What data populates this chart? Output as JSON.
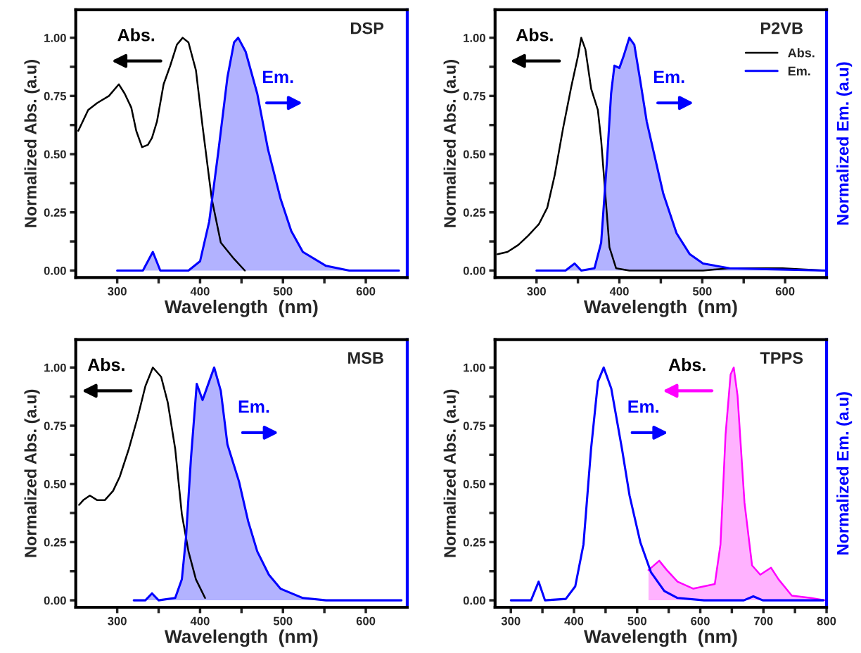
{
  "chart_data": [
    {
      "type": "line",
      "title": "DSP",
      "xlabel": "Wavelength  (nm)",
      "ylabel": "Normalized Abs. (a.u)",
      "annotations": [
        "Abs.",
        "Em."
      ],
      "xlim": [
        250,
        650
      ],
      "xticks": [
        {
          "value": 300,
          "label": "300"
        },
        {
          "value": 350,
          "label": null
        },
        {
          "value": 400,
          "label": "400"
        },
        {
          "value": 450,
          "label": null
        },
        {
          "value": 500,
          "label": "500"
        },
        {
          "value": 550,
          "label": null
        },
        {
          "value": 600,
          "label": "600"
        }
      ],
      "ylim": [
        -0.03,
        1.12
      ],
      "yticks": [
        {
          "value": 0,
          "label": "0.00"
        },
        {
          "value": 0.125,
          "label": null
        },
        {
          "value": 0.25,
          "label": "0.25"
        },
        {
          "value": 0.375,
          "label": null
        },
        {
          "value": 0.5,
          "label": "0.50"
        },
        {
          "value": 0.625,
          "label": null
        },
        {
          "value": 0.75,
          "label": "0.75"
        },
        {
          "value": 0.875,
          "label": null
        },
        {
          "value": 1,
          "label": "1.00"
        }
      ],
      "series": [
        {
          "type": "line",
          "color": "#000000",
          "x": [
            253,
            265,
            276,
            290,
            302,
            309,
            317,
            323,
            330,
            337,
            342,
            348,
            356,
            364,
            372,
            379,
            386,
            395,
            403,
            414,
            425,
            441,
            454
          ],
          "values": [
            0.6,
            0.69,
            0.72,
            0.75,
            0.8,
            0.76,
            0.7,
            0.6,
            0.53,
            0.54,
            0.57,
            0.64,
            0.8,
            0.88,
            0.97,
            1.0,
            0.98,
            0.86,
            0.62,
            0.31,
            0.12,
            0.05,
            0.0
          ]
        },
        {
          "type": "area",
          "color": "#0000ff",
          "x": [
            300,
            331,
            343,
            352,
            386,
            400,
            411,
            422,
            433,
            441,
            446,
            455,
            469,
            482,
            497,
            510,
            524,
            552,
            580,
            640
          ],
          "values": [
            0,
            0,
            0.08,
            0,
            0,
            0.04,
            0.21,
            0.51,
            0.83,
            0.98,
            1.0,
            0.94,
            0.76,
            0.52,
            0.31,
            0.17,
            0.08,
            0.02,
            0,
            0
          ]
        }
      ]
    },
    {
      "type": "line",
      "title": "P2VB",
      "xlabel": "Wavelength  (nm)",
      "ylabel": "Normalized Abs. (a.u)",
      "y2label": "Normalized Em. (a.u)",
      "annotations": [
        "Abs.",
        "Em."
      ],
      "legend": "top right",
      "xlim": [
        250,
        650
      ],
      "xticks": [
        {
          "value": 300,
          "label": "300"
        },
        {
          "value": 350,
          "label": null
        },
        {
          "value": 400,
          "label": "400"
        },
        {
          "value": 450,
          "label": null
        },
        {
          "value": 500,
          "label": "500"
        },
        {
          "value": 550,
          "label": null
        },
        {
          "value": 600,
          "label": "600"
        }
      ],
      "ylim": [
        -0.03,
        1.12
      ],
      "yticks": [
        {
          "value": 0,
          "label": "0.00"
        },
        {
          "value": 0.125,
          "label": null
        },
        {
          "value": 0.25,
          "label": "0.25"
        },
        {
          "value": 0.375,
          "label": null
        },
        {
          "value": 0.5,
          "label": "0.50"
        },
        {
          "value": 0.625,
          "label": null
        },
        {
          "value": 0.75,
          "label": "0.75"
        },
        {
          "value": 0.875,
          "label": null
        },
        {
          "value": 1,
          "label": "1.00"
        }
      ],
      "series": [
        {
          "type": "line",
          "name": "Abs.",
          "color": "#000000",
          "x": [
            253,
            265,
            278,
            290,
            303,
            313,
            322,
            332,
            342,
            350,
            354,
            359,
            366,
            374,
            378,
            383,
            388,
            396,
            412,
            501,
            533,
            597,
            648
          ],
          "values": [
            0.07,
            0.08,
            0.11,
            0.15,
            0.2,
            0.27,
            0.41,
            0.61,
            0.79,
            0.92,
            1.0,
            0.95,
            0.78,
            0.69,
            0.56,
            0.33,
            0.1,
            0.01,
            0,
            0,
            0.01,
            0.01,
            0
          ]
        },
        {
          "type": "area",
          "name": "Em.",
          "color": "#0000ff",
          "x": [
            300,
            335,
            346,
            354,
            370,
            378,
            385,
            390,
            394,
            400,
            405,
            412,
            418,
            425,
            433,
            442,
            453,
            469,
            485,
            501,
            533,
            648
          ],
          "values": [
            0,
            0,
            0.03,
            0,
            0.01,
            0.12,
            0.47,
            0.76,
            0.88,
            0.87,
            0.92,
            1.0,
            0.97,
            0.82,
            0.64,
            0.5,
            0.33,
            0.16,
            0.07,
            0.03,
            0.01,
            0
          ]
        }
      ]
    },
    {
      "type": "line",
      "title": "MSB",
      "xlabel": "Wavelength  (nm)",
      "ylabel": "Normalized Abs. (a.u)",
      "annotations": [
        "Abs.",
        "Em."
      ],
      "xlim": [
        250,
        650
      ],
      "xticks": [
        {
          "value": 300,
          "label": "300"
        },
        {
          "value": 350,
          "label": null
        },
        {
          "value": 400,
          "label": "400"
        },
        {
          "value": 450,
          "label": null
        },
        {
          "value": 500,
          "label": "500"
        },
        {
          "value": 550,
          "label": null
        },
        {
          "value": 600,
          "label": "600"
        }
      ],
      "ylim": [
        -0.03,
        1.12
      ],
      "yticks": [
        {
          "value": 0,
          "label": "0.00"
        },
        {
          "value": 0.125,
          "label": null
        },
        {
          "value": 0.25,
          "label": "0.25"
        },
        {
          "value": 0.375,
          "label": null
        },
        {
          "value": 0.5,
          "label": "0.50"
        },
        {
          "value": 0.625,
          "label": null
        },
        {
          "value": 0.75,
          "label": "0.75"
        },
        {
          "value": 0.875,
          "label": null
        },
        {
          "value": 1,
          "label": "1.00"
        }
      ],
      "series": [
        {
          "type": "line",
          "color": "#000000",
          "x": [
            254,
            259,
            267,
            276,
            285,
            295,
            303,
            314,
            325,
            334,
            343,
            353,
            361,
            370,
            378,
            386,
            395,
            406
          ],
          "values": [
            0.41,
            0.43,
            0.45,
            0.43,
            0.43,
            0.47,
            0.53,
            0.65,
            0.79,
            0.92,
            1.0,
            0.96,
            0.85,
            0.65,
            0.37,
            0.21,
            0.09,
            0.01
          ]
        },
        {
          "type": "area",
          "color": "#0000ff",
          "x": [
            320,
            334,
            342,
            350,
            370,
            378,
            383,
            389,
            396,
            403,
            411,
            417,
            425,
            433,
            447,
            458,
            469,
            483,
            497,
            524,
            552,
            643
          ],
          "values": [
            0,
            0,
            0.03,
            0,
            0.01,
            0.09,
            0.27,
            0.61,
            0.93,
            0.86,
            0.94,
            1.0,
            0.9,
            0.67,
            0.51,
            0.34,
            0.21,
            0.11,
            0.05,
            0.01,
            0,
            0
          ]
        }
      ]
    },
    {
      "type": "line",
      "title": "TPPS",
      "xlabel": "Wavelength  (nm)",
      "ylabel": "Normalized Abs. (a.u)",
      "y2label": "Normalized Em. (a.u)",
      "annotations": [
        "Abs.",
        "Em."
      ],
      "xlim": [
        275,
        800
      ],
      "xticks": [
        {
          "value": 300,
          "label": "300"
        },
        {
          "value": 350,
          "label": null
        },
        {
          "value": 400,
          "label": "400"
        },
        {
          "value": 450,
          "label": null
        },
        {
          "value": 500,
          "label": "500"
        },
        {
          "value": 550,
          "label": null
        },
        {
          "value": 600,
          "label": "600"
        },
        {
          "value": 650,
          "label": null
        },
        {
          "value": 700,
          "label": "700"
        },
        {
          "value": 750,
          "label": null
        },
        {
          "value": 800,
          "label": "800"
        }
      ],
      "ylim": [
        -0.03,
        1.12
      ],
      "yticks": [
        {
          "value": 0,
          "label": "0.00"
        },
        {
          "value": 0.125,
          "label": null
        },
        {
          "value": 0.25,
          "label": "0.25"
        },
        {
          "value": 0.375,
          "label": null
        },
        {
          "value": 0.5,
          "label": "0.50"
        },
        {
          "value": 0.625,
          "label": null
        },
        {
          "value": 0.75,
          "label": "0.75"
        },
        {
          "value": 0.875,
          "label": null
        },
        {
          "value": 1,
          "label": "1.00"
        }
      ],
      "series": [
        {
          "type": "area",
          "color": "#ff00ff",
          "x": [
            518,
            535,
            547,
            564,
            589,
            606,
            623,
            632,
            640,
            648,
            653,
            659,
            670,
            682,
            695,
            712,
            724,
            745,
            775,
            798
          ],
          "values": [
            0.13,
            0.17,
            0.13,
            0.08,
            0.05,
            0.06,
            0.07,
            0.24,
            0.71,
            0.97,
            1.0,
            0.88,
            0.42,
            0.15,
            0.11,
            0.14,
            0.09,
            0.02,
            0.01,
            0
          ]
        },
        {
          "type": "line",
          "color": "#0000ff",
          "x": [
            300,
            332,
            344,
            354,
            387,
            402,
            415,
            427,
            438,
            447,
            459,
            476,
            488,
            505,
            522,
            543,
            564,
            606,
            669,
            684,
            699,
            795
          ],
          "values": [
            0,
            0,
            0.08,
            0,
            0.006,
            0.06,
            0.24,
            0.65,
            0.94,
            1.0,
            0.91,
            0.65,
            0.45,
            0.25,
            0.12,
            0.04,
            0.01,
            0,
            0,
            0.017,
            0,
            0
          ]
        }
      ]
    }
  ]
}
